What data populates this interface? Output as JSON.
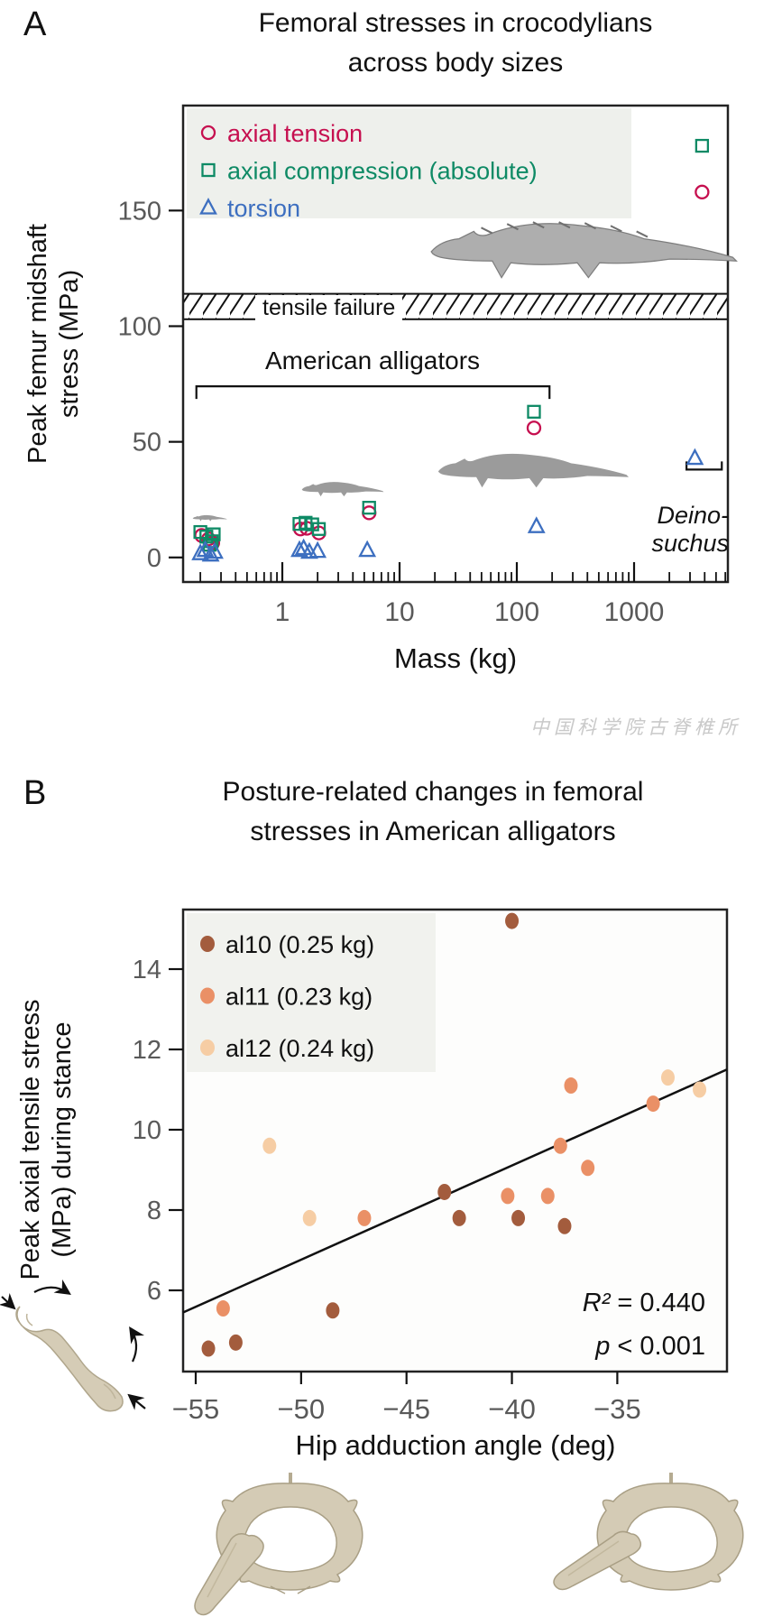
{
  "figure": {
    "panel_a_letter": "A",
    "panel_b_letter": "B",
    "watermark_text": "中国科学院古脊椎所"
  },
  "chart_data": [
    {
      "type": "scatter",
      "panel": "A",
      "title": "Femoral stresses in crocodylians across body sizes",
      "title_lines": [
        "Femoral stresses in crocodylians",
        "across body sizes"
      ],
      "xlabel": "Mass (kg)",
      "xscale": "log",
      "xlim": [
        0.135,
        6300
      ],
      "xticks": [
        1,
        10,
        100,
        1000
      ],
      "xtick_labels": [
        "1",
        "10",
        "100",
        "1000"
      ],
      "ylabel_lines": [
        "Peak femur midshaft",
        "stress (MPa)"
      ],
      "ylabel": "Peak femur midshaft stress (MPa)",
      "ylim": [
        -10,
        195
      ],
      "yticks": [
        0,
        50,
        100,
        150
      ],
      "ytick_labels": [
        "0",
        "50",
        "100",
        "150"
      ],
      "grid": false,
      "legend_position": "upper left",
      "failure_band": {
        "label": "tensile failure",
        "from_mpa": 103,
        "to_mpa": 114
      },
      "annotations": {
        "alligator_bracket": {
          "label": "American alligators",
          "mass_from": 0.185,
          "mass_to": 190,
          "stress_level": 74
        },
        "deinosuchus_bracket": {
          "label_line1": "Deino-",
          "label_line2": "suchus",
          "mass_from": 2800,
          "mass_to": 5600,
          "stress_level": 38
        }
      },
      "series": [
        {
          "name": "axial tension",
          "marker": "circle",
          "color": "#c60f4f",
          "points": [
            [
              0.205,
              9.5
            ],
            [
              0.235,
              8
            ],
            [
              0.255,
              6.3
            ],
            [
              1.43,
              12.3
            ],
            [
              1.62,
              12.6
            ],
            [
              2.05,
              10.6
            ],
            [
              5.5,
              19.3
            ],
            [
              140,
              56
            ],
            [
              3800,
              158
            ]
          ]
        },
        {
          "name": "axial compression (absolute)",
          "marker": "square",
          "color": "#0e8a65",
          "points": [
            [
              0.2,
              11
            ],
            [
              0.225,
              9
            ],
            [
              0.25,
              7
            ],
            [
              0.26,
              10
            ],
            [
              0.24,
              5.5
            ],
            [
              1.4,
              14.5
            ],
            [
              1.58,
              15
            ],
            [
              1.8,
              14.3
            ],
            [
              2.05,
              12.3
            ],
            [
              5.5,
              21.5
            ],
            [
              140,
              63
            ],
            [
              3800,
              178
            ]
          ]
        },
        {
          "name": "torsion",
          "marker": "triangle",
          "color": "#3d6fc0",
          "points": [
            [
              0.2,
              1.8
            ],
            [
              0.22,
              3.2
            ],
            [
              0.245,
              1.2
            ],
            [
              0.265,
              2.4
            ],
            [
              1.4,
              3.2
            ],
            [
              1.52,
              4.0
            ],
            [
              1.7,
              2.4
            ],
            [
              2.0,
              2.8
            ],
            [
              5.3,
              3.2
            ],
            [
              147,
              13.5
            ],
            [
              3300,
              43
            ]
          ]
        }
      ]
    },
    {
      "type": "scatter",
      "panel": "B",
      "title": "Posture-related changes in femoral stresses in American alligators",
      "title_lines": [
        "Posture-related changes in femoral",
        "stresses in American alligators"
      ],
      "xlabel": "Hip adduction angle (deg)",
      "xscale": "linear",
      "xlim": [
        -55.6,
        -29.8
      ],
      "xticks": [
        -55,
        -50,
        -45,
        -40,
        -35
      ],
      "xtick_labels": [
        "−55",
        "−50",
        "−45",
        "−40",
        "−35"
      ],
      "ylabel_lines": [
        "Peak axial tensile stress",
        "(MPa) during stance"
      ],
      "ylabel": "Peak axial tensile stress (MPa) during stance",
      "ylim": [
        3.98,
        15.48
      ],
      "yticks": [
        6,
        8,
        10,
        12,
        14
      ],
      "ytick_labels": [
        "6",
        "8",
        "10",
        "12",
        "14"
      ],
      "grid": false,
      "legend_position": "upper left",
      "regression": {
        "x1": -55.6,
        "y1": 5.45,
        "x2": -29.8,
        "y2": 11.5
      },
      "stats": {
        "r2_symbol": "R²",
        "r2_rest": " = 0.440",
        "p_symbol": "p",
        "p_rest": " < 0.001"
      },
      "series": [
        {
          "name": "al10 (0.25 kg)",
          "marker": "dot",
          "color": "#a35c3d",
          "points": [
            [
              -54.4,
              4.55
            ],
            [
              -53.1,
              4.7
            ],
            [
              -48.5,
              5.5
            ],
            [
              -43.2,
              8.45
            ],
            [
              -42.5,
              7.8
            ],
            [
              -40.0,
              15.2
            ],
            [
              -39.7,
              7.8
            ],
            [
              -37.5,
              7.6
            ]
          ]
        },
        {
          "name": "al11 (0.23 kg)",
          "marker": "dot",
          "color": "#ea9066",
          "points": [
            [
              -53.7,
              5.55
            ],
            [
              -47.0,
              7.8
            ],
            [
              -40.2,
              8.35
            ],
            [
              -38.3,
              8.35
            ],
            [
              -37.7,
              9.6
            ],
            [
              -37.2,
              11.1
            ],
            [
              -36.4,
              9.05
            ],
            [
              -33.3,
              10.65
            ]
          ]
        },
        {
          "name": "al12 (0.24 kg)",
          "marker": "dot",
          "color": "#f6cda4",
          "points": [
            [
              -51.5,
              9.6
            ],
            [
              -49.6,
              7.8
            ],
            [
              -32.6,
              11.3
            ],
            [
              -31.1,
              11.0
            ]
          ]
        }
      ]
    }
  ]
}
